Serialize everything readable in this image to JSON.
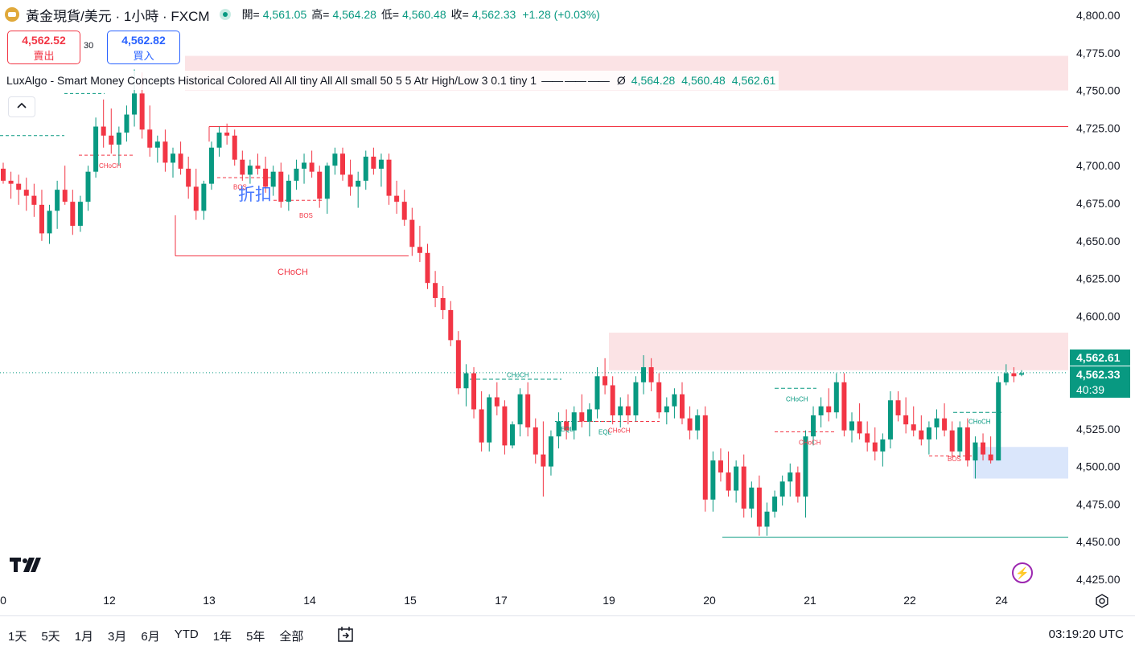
{
  "header": {
    "symbol_title": "黃金現貨/美元 · 1小時 · FXCM",
    "open_label": "開=",
    "open_value": "4,561.05",
    "high_label": "高=",
    "high_value": "4,564.28",
    "low_label": "低=",
    "low_value": "4,560.48",
    "close_label": "收=",
    "close_value": "4,562.33",
    "change": "+1.28 (+0.03%)"
  },
  "trade": {
    "sell_price": "4,562.52",
    "sell_label": "賣出",
    "spread": "30",
    "buy_price": "4,562.82",
    "buy_label": "買入"
  },
  "indicator": {
    "name": "LuxAlgo - Smart Money Concepts Historical Colored All All tiny All All small 50 5 5 Atr High/Low 3 0.1 tiny 1",
    "lines": "—— —— ——",
    "null_symbol": "Ø",
    "v1": "4,564.28",
    "v2": "4,560.48",
    "v3": "4,562.61"
  },
  "collapse_icon": "chevron-up-icon",
  "price_badges": {
    "last": "4,562.61",
    "close": "4,562.33",
    "countdown": "40:39"
  },
  "overlay_text": "折扣",
  "bottom": {
    "ranges": [
      "1天",
      "5天",
      "1月",
      "3月",
      "6月",
      "YTD",
      "1年",
      "5年",
      "全部"
    ],
    "clock": "03:19:20 UTC"
  },
  "colors": {
    "up": "#089981",
    "down": "#f23645",
    "premium_zone": "#fbe3e5",
    "discount_zone": "#dae6fb"
  },
  "chart_data": {
    "type": "candlestick",
    "timeframe": "1h",
    "y_ticks": [
      4800,
      4775,
      4750,
      4725,
      4700,
      4675,
      4650,
      4625,
      4600,
      4575,
      4550,
      4525,
      4500,
      4475,
      4450,
      4425
    ],
    "y_tick_labels": [
      "4,800.00",
      "4,775.00",
      "4,750.00",
      "4,725.00",
      "4,700.00",
      "4,675.00",
      "4,650.00",
      "4,625.00",
      "4,600.00",
      "",
      "",
      "4,525.00",
      "4,500.00",
      "4,475.00",
      "4,450.00",
      "4,425.00"
    ],
    "x_ticks": [
      "0",
      "12",
      "13",
      "14",
      "15",
      "17",
      "19",
      "20",
      "21",
      "22",
      "24"
    ],
    "ylim": [
      4415,
      4807
    ],
    "candles": [
      [
        4698,
        4702,
        4688,
        4690
      ],
      [
        4690,
        4696,
        4678,
        4688
      ],
      [
        4688,
        4694,
        4674,
        4684
      ],
      [
        4684,
        4692,
        4670,
        4680
      ],
      [
        4680,
        4688,
        4666,
        4674
      ],
      [
        4674,
        4684,
        4650,
        4655
      ],
      [
        4655,
        4674,
        4648,
        4670
      ],
      [
        4670,
        4690,
        4658,
        4684
      ],
      [
        4684,
        4700,
        4674,
        4676
      ],
      [
        4676,
        4684,
        4654,
        4660
      ],
      [
        4660,
        4680,
        4656,
        4676
      ],
      [
        4676,
        4700,
        4670,
        4696
      ],
      [
        4696,
        4732,
        4692,
        4726
      ],
      [
        4726,
        4744,
        4712,
        4720
      ],
      [
        4720,
        4738,
        4708,
        4714
      ],
      [
        4714,
        4726,
        4700,
        4722
      ],
      [
        4722,
        4740,
        4716,
        4734
      ],
      [
        4734,
        4764,
        4726,
        4748
      ],
      [
        4748,
        4762,
        4718,
        4724
      ],
      [
        4724,
        4740,
        4706,
        4712
      ],
      [
        4712,
        4720,
        4702,
        4716
      ],
      [
        4716,
        4724,
        4696,
        4702
      ],
      [
        4702,
        4712,
        4692,
        4708
      ],
      [
        4708,
        4716,
        4694,
        4698
      ],
      [
        4698,
        4706,
        4678,
        4686
      ],
      [
        4686,
        4698,
        4664,
        4670
      ],
      [
        4670,
        4690,
        4664,
        4688
      ],
      [
        4688,
        4716,
        4684,
        4712
      ],
      [
        4712,
        4726,
        4706,
        4722
      ],
      [
        4722,
        4728,
        4714,
        4720
      ],
      [
        4720,
        4724,
        4700,
        4704
      ],
      [
        4704,
        4710,
        4690,
        4694
      ],
      [
        4694,
        4704,
        4688,
        4700
      ],
      [
        4700,
        4708,
        4694,
        4698
      ],
      [
        4698,
        4706,
        4682,
        4686
      ],
      [
        4686,
        4700,
        4680,
        4696
      ],
      [
        4696,
        4702,
        4672,
        4676
      ],
      [
        4676,
        4694,
        4670,
        4690
      ],
      [
        4690,
        4704,
        4684,
        4698
      ],
      [
        4698,
        4708,
        4688,
        4702
      ],
      [
        4702,
        4710,
        4692,
        4696
      ],
      [
        4696,
        4700,
        4672,
        4678
      ],
      [
        4678,
        4702,
        4668,
        4700
      ],
      [
        4700,
        4712,
        4694,
        4708
      ],
      [
        4708,
        4712,
        4690,
        4694
      ],
      [
        4694,
        4704,
        4680,
        4686
      ],
      [
        4686,
        4696,
        4672,
        4690
      ],
      [
        4690,
        4710,
        4684,
        4706
      ],
      [
        4706,
        4712,
        4694,
        4698
      ],
      [
        4698,
        4708,
        4686,
        4704
      ],
      [
        4704,
        4708,
        4674,
        4680
      ],
      [
        4680,
        4690,
        4668,
        4676
      ],
      [
        4676,
        4684,
        4660,
        4664
      ],
      [
        4664,
        4672,
        4640,
        4646
      ],
      [
        4646,
        4660,
        4636,
        4642
      ],
      [
        4642,
        4648,
        4618,
        4622
      ],
      [
        4622,
        4630,
        4606,
        4612
      ],
      [
        4612,
        4620,
        4598,
        4604
      ],
      [
        4604,
        4610,
        4580,
        4584
      ],
      [
        4584,
        4590,
        4548,
        4552
      ],
      [
        4552,
        4568,
        4540,
        4562
      ],
      [
        4562,
        4566,
        4532,
        4538
      ],
      [
        4538,
        4550,
        4510,
        4516
      ],
      [
        4516,
        4548,
        4510,
        4546
      ],
      [
        4546,
        4556,
        4534,
        4540
      ],
      [
        4540,
        4544,
        4508,
        4514
      ],
      [
        4514,
        4530,
        4512,
        4528
      ],
      [
        4528,
        4552,
        4520,
        4548
      ],
      [
        4548,
        4556,
        4520,
        4526
      ],
      [
        4526,
        4532,
        4502,
        4508
      ],
      [
        4508,
        4530,
        4480,
        4500
      ],
      [
        4500,
        4524,
        4494,
        4520
      ],
      [
        4520,
        4536,
        4512,
        4530
      ],
      [
        4530,
        4538,
        4518,
        4524
      ],
      [
        4524,
        4540,
        4518,
        4536
      ],
      [
        4536,
        4548,
        4526,
        4530
      ],
      [
        4530,
        4542,
        4520,
        4538
      ],
      [
        4538,
        4566,
        4532,
        4560
      ],
      [
        4560,
        4572,
        4548,
        4554
      ],
      [
        4554,
        4560,
        4528,
        4534
      ],
      [
        4534,
        4546,
        4526,
        4540
      ],
      [
        4540,
        4548,
        4528,
        4534
      ],
      [
        4534,
        4560,
        4530,
        4556
      ],
      [
        4556,
        4574,
        4548,
        4566
      ],
      [
        4566,
        4572,
        4550,
        4556
      ],
      [
        4556,
        4562,
        4532,
        4536
      ],
      [
        4536,
        4546,
        4528,
        4540
      ],
      [
        4540,
        4552,
        4532,
        4548
      ],
      [
        4548,
        4556,
        4528,
        4532
      ],
      [
        4532,
        4540,
        4518,
        4524
      ],
      [
        4524,
        4538,
        4518,
        4534
      ],
      [
        4534,
        4540,
        4470,
        4478
      ],
      [
        4478,
        4510,
        4470,
        4504
      ],
      [
        4504,
        4512,
        4490,
        4496
      ],
      [
        4496,
        4510,
        4480,
        4484
      ],
      [
        4484,
        4504,
        4476,
        4500
      ],
      [
        4500,
        4508,
        4466,
        4472
      ],
      [
        4472,
        4490,
        4466,
        4486
      ],
      [
        4486,
        4494,
        4454,
        4460
      ],
      [
        4460,
        4476,
        4454,
        4470
      ],
      [
        4470,
        4484,
        4466,
        4480
      ],
      [
        4480,
        4494,
        4474,
        4490
      ],
      [
        4490,
        4502,
        4480,
        4496
      ],
      [
        4496,
        4500,
        4476,
        4480
      ],
      [
        4480,
        4524,
        4466,
        4520
      ],
      [
        4520,
        4540,
        4514,
        4534
      ],
      [
        4534,
        4546,
        4526,
        4540
      ],
      [
        4540,
        4552,
        4530,
        4536
      ],
      [
        4536,
        4562,
        4532,
        4556
      ],
      [
        4556,
        4562,
        4520,
        4524
      ],
      [
        4524,
        4536,
        4516,
        4530
      ],
      [
        4530,
        4542,
        4518,
        4522
      ],
      [
        4522,
        4530,
        4510,
        4516
      ],
      [
        4516,
        4526,
        4504,
        4510
      ],
      [
        4510,
        4522,
        4500,
        4518
      ],
      [
        4518,
        4550,
        4512,
        4544
      ],
      [
        4544,
        4550,
        4530,
        4534
      ],
      [
        4534,
        4546,
        4522,
        4528
      ],
      [
        4528,
        4540,
        4520,
        4524
      ],
      [
        4524,
        4534,
        4514,
        4518
      ],
      [
        4518,
        4530,
        4508,
        4526
      ],
      [
        4526,
        4538,
        4518,
        4532
      ],
      [
        4532,
        4542,
        4520,
        4524
      ],
      [
        4524,
        4530,
        4506,
        4510
      ],
      [
        4510,
        4530,
        4506,
        4526
      ],
      [
        4526,
        4532,
        4500,
        4504
      ],
      [
        4504,
        4520,
        4492,
        4516
      ],
      [
        4516,
        4522,
        4504,
        4508
      ],
      [
        4508,
        4520,
        4502,
        4504
      ],
      [
        4504,
        4560,
        4504,
        4556
      ],
      [
        4556,
        4568,
        4554,
        4562
      ],
      [
        4562,
        4566,
        4556,
        4560
      ],
      [
        4561,
        4564,
        4560,
        4562
      ]
    ],
    "structure_labels": [
      {
        "text": "CHoCH",
        "price": 4700,
        "color": "#f23645"
      },
      {
        "text": "BOS",
        "price": 4686,
        "color": "#f23645"
      },
      {
        "text": "BOS",
        "price": 4667,
        "color": "#f23645"
      },
      {
        "text": "CHoCH",
        "price": 4629,
        "color": "#f23645"
      },
      {
        "text": "CHoCH",
        "price": 4561,
        "color": "#089981"
      },
      {
        "text": "EQL",
        "price": 4525,
        "color": "#089981"
      },
      {
        "text": "EQL",
        "price": 4523,
        "color": "#089981"
      },
      {
        "text": "CHoCH",
        "price": 4524,
        "color": "#f23645"
      },
      {
        "text": "CHoCH",
        "price": 4545,
        "color": "#089981"
      },
      {
        "text": "CHoCH",
        "price": 4516,
        "color": "#f23645"
      },
      {
        "text": "CHoCH",
        "price": 4530,
        "color": "#089981"
      },
      {
        "text": "BOS",
        "price": 4505,
        "color": "#f23645"
      }
    ],
    "current_price": 4562.33
  }
}
